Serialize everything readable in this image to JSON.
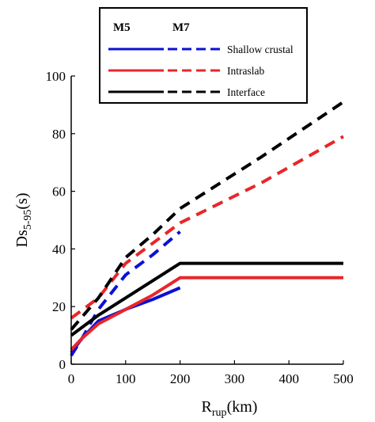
{
  "chart_data": {
    "type": "line",
    "xlabel": "R",
    "xlabel_sub": "rup",
    "xlabel_suffix": "(km)",
    "ylabel": "Ds",
    "ylabel_sub": "5-95",
    "ylabel_suffix": "(s)",
    "xlim": [
      0,
      500
    ],
    "ylim": [
      0,
      100
    ],
    "xticks": [
      0,
      100,
      200,
      300,
      400,
      500
    ],
    "yticks": [
      0,
      20,
      40,
      60,
      80,
      100
    ],
    "grid": false,
    "legend_position": "top",
    "legend": {
      "col_m5": "M5",
      "col_m7": "M7",
      "rows": [
        "Shallow crustal",
        "Intraslab",
        "Interface"
      ]
    },
    "colors": {
      "Shallow crustal": "#0b10d6",
      "Intraslab": "#e8262a",
      "Interface": "#000000"
    },
    "series": [
      {
        "row": "Shallow crustal",
        "magnitude": "M5",
        "style": "solid",
        "points": [
          [
            0,
            4
          ],
          [
            20,
            9
          ],
          [
            50,
            15
          ],
          [
            100,
            19
          ],
          [
            150,
            22.5
          ],
          [
            200,
            26.5
          ]
        ]
      },
      {
        "row": "Shallow crustal",
        "magnitude": "M7",
        "style": "dashed",
        "points": [
          [
            0,
            3
          ],
          [
            20,
            9
          ],
          [
            50,
            19
          ],
          [
            100,
            31
          ],
          [
            150,
            38
          ],
          [
            200,
            46
          ]
        ]
      },
      {
        "row": "Intraslab",
        "magnitude": "M5",
        "style": "solid",
        "points": [
          [
            0,
            5
          ],
          [
            20,
            9
          ],
          [
            50,
            14
          ],
          [
            100,
            19
          ],
          [
            150,
            24
          ],
          [
            200,
            30
          ],
          [
            500,
            30
          ]
        ]
      },
      {
        "row": "Intraslab",
        "magnitude": "M7",
        "style": "dashed",
        "points": [
          [
            0,
            16
          ],
          [
            50,
            23
          ],
          [
            100,
            35
          ],
          [
            150,
            42
          ],
          [
            200,
            49
          ],
          [
            350,
            63
          ],
          [
            500,
            79
          ]
        ]
      },
      {
        "row": "Interface",
        "magnitude": "M5",
        "style": "solid",
        "points": [
          [
            0,
            10
          ],
          [
            50,
            17
          ],
          [
            100,
            23
          ],
          [
            150,
            29
          ],
          [
            200,
            35
          ],
          [
            500,
            35
          ]
        ]
      },
      {
        "row": "Interface",
        "magnitude": "M7",
        "style": "dashed",
        "points": [
          [
            0,
            12
          ],
          [
            50,
            23
          ],
          [
            100,
            37
          ],
          [
            150,
            45
          ],
          [
            200,
            54
          ],
          [
            350,
            72
          ],
          [
            500,
            91
          ]
        ]
      }
    ]
  }
}
